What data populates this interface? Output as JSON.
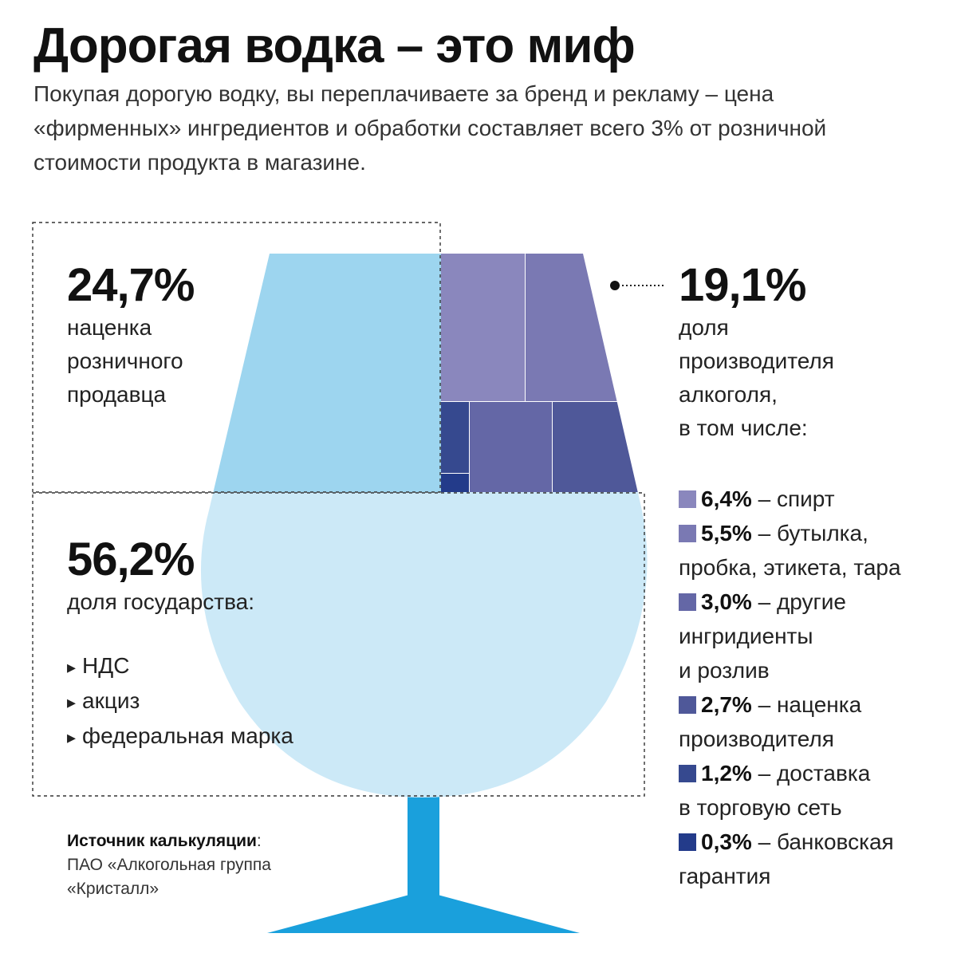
{
  "title": "Дорогая водка – это миф",
  "subtitle": "Покупая дорогую водку, вы переплачиваете за бренд и рекламу – цена «фирменных» ингредиентов и обработки составляет всего 3% от розничной стоимости продукта в магазине.",
  "retail": {
    "value": "24,7%",
    "label_lines": [
      "наценка",
      "розничного",
      "продавца"
    ]
  },
  "state": {
    "value": "56,2%",
    "label": "доля государства:",
    "items": [
      "НДС",
      "акциз",
      "федеральная марка"
    ]
  },
  "producer": {
    "value": "19,1%",
    "label_lines": [
      "доля",
      "производителя",
      "алкоголя,",
      "в том числе:"
    ]
  },
  "legend": [
    {
      "value": "6,4%",
      "text": " – спирт",
      "cont": "",
      "color": "#8a87bd"
    },
    {
      "value": "5,5%",
      "text": " – бутылка,",
      "cont": "пробка, этикета, тара",
      "color": "#7a79b3"
    },
    {
      "value": "3,0%",
      "text": " – другие",
      "cont": "ингридиенты",
      "cont2": "и розлив",
      "color": "#6467a6"
    },
    {
      "value": "2,7%",
      "text": " – наценка",
      "cont": "производителя",
      "color": "#4f5899"
    },
    {
      "value": "1,2%",
      "text": " – доставка",
      "cont": "в торговую сеть",
      "color": "#36498f"
    },
    {
      "value": "0,3%",
      "text": " – банковская",
      "cont": "гарантия",
      "color": "#233b8a"
    }
  ],
  "source": {
    "label": "Источник калькуляции",
    "colon": ":",
    "text": "ПАО «Алкогольная группа «Кристалл»"
  },
  "chart_data": {
    "type": "treemap",
    "title": "Дорогая водка – это миф",
    "categories": [
      "наценка розничного продавца",
      "доля государства",
      "доля производителя алкоголя"
    ],
    "values": [
      24.7,
      56.2,
      19.1
    ],
    "unit": "%",
    "breakdown": {
      "parent": "доля производителя алкоголя",
      "categories": [
        "спирт",
        "бутылка, пробка, этикета, тара",
        "другие ингридиенты и розлив",
        "наценка производителя",
        "доставка в торговую сеть",
        "банковская гарантия"
      ],
      "values": [
        6.4,
        5.5,
        3.0,
        2.7,
        1.2,
        0.3
      ]
    },
    "colors": {
      "retail": "#9dd5ef",
      "state": "#cce9f7",
      "stem": "#1aa0dc"
    }
  }
}
